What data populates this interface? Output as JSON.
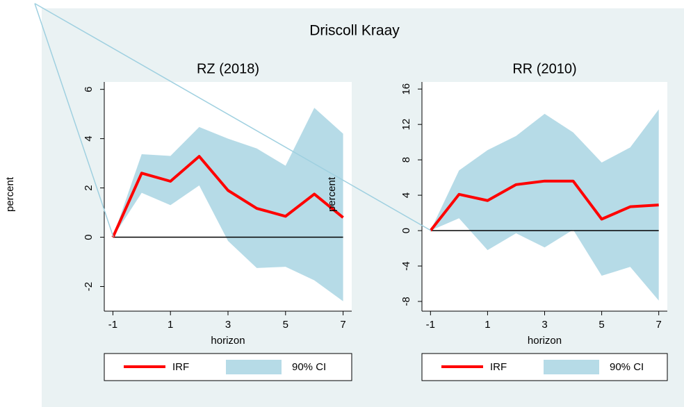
{
  "title": "Driscoll Kraay",
  "chart_data": [
    {
      "type": "line",
      "title": "RZ (2018)",
      "xlabel": "horizon",
      "ylabel": "percent",
      "x": [
        -1,
        0,
        1,
        2,
        3,
        4,
        5,
        6,
        7
      ],
      "xlim": [
        -1.3,
        7.3
      ],
      "xticks": [
        -1,
        1,
        3,
        5,
        7
      ],
      "ylim": [
        -3,
        6.3
      ],
      "yticks": [
        -2,
        0,
        2,
        4,
        6
      ],
      "reference_line": 0,
      "series": [
        {
          "name": "IRF",
          "color": "#ff0000",
          "values": [
            0,
            2.6,
            2.27,
            3.28,
            1.9,
            1.17,
            0.85,
            1.75,
            0.8
          ]
        },
        {
          "name": "90% CI",
          "color": "#b6dbe7",
          "upper": [
            0,
            3.37,
            3.3,
            4.47,
            4.0,
            3.6,
            2.9,
            5.25,
            4.2
          ],
          "lower": [
            0,
            1.8,
            1.3,
            2.1,
            -0.15,
            -1.25,
            -1.2,
            -1.75,
            -2.6
          ]
        }
      ]
    },
    {
      "type": "line",
      "title": "RR (2010)",
      "xlabel": "horizon",
      "ylabel": "percent",
      "x": [
        -1,
        0,
        1,
        2,
        3,
        4,
        5,
        6,
        7
      ],
      "xlim": [
        -1.3,
        7.3
      ],
      "xticks": [
        -1,
        1,
        3,
        5,
        7
      ],
      "ylim": [
        -9.1,
        16.8
      ],
      "yticks": [
        -8,
        -4,
        0,
        4,
        8,
        12,
        16
      ],
      "reference_line": 0,
      "series": [
        {
          "name": "IRF",
          "color": "#ff0000",
          "values": [
            0,
            4.1,
            3.4,
            5.2,
            5.6,
            5.6,
            1.3,
            2.7,
            2.9
          ]
        },
        {
          "name": "90% CI",
          "color": "#b6dbe7",
          "upper": [
            0,
            6.8,
            9.1,
            10.7,
            13.2,
            11.1,
            7.7,
            9.4,
            13.7
          ],
          "lower": [
            0,
            1.4,
            -2.2,
            -0.3,
            -1.9,
            0.1,
            -5.1,
            -4.1,
            -7.9
          ]
        }
      ]
    }
  ]
}
